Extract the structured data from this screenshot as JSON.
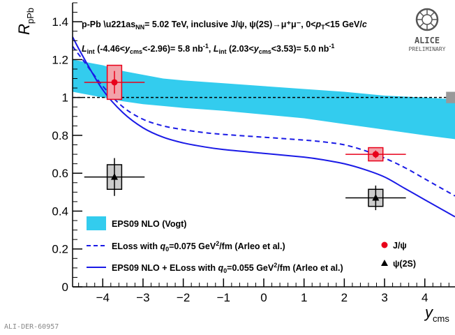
{
  "chart_data": {
    "type": "scatter",
    "title": "",
    "header": {
      "line1_prefix": "p-Pb",
      "sqrt_s_label": "s",
      "sqrt_s_sub": "NN",
      "line1_rest": "= 5.02 TeV, inclusive J/ψ, ψ(2S)→μ⁺μ⁻, 0<",
      "pt_label": "p",
      "pt_sub": "T",
      "line1_end": "<15 GeV/",
      "c_label": "c",
      "lumi_backward_prefix": "L",
      "lumi_backward_sub": "int",
      "lumi_backward_range_a": " (-4.46<",
      "lumi_y": "y",
      "lumi_y_sub": "cms",
      "lumi_backward_range_b": "<-2.96)= 5.8 nb",
      "lumi_backward_exp": "-1",
      "lumi_sep": ", ",
      "lumi_forward_prefix": "L",
      "lumi_forward_sub": "int",
      "lumi_forward_range_a": " (2.03<",
      "lumi_forward_range_b": "<3.53)= 5.0 nb",
      "lumi_forward_exp": "-1"
    },
    "xlabel": "y",
    "xlabel_sub": "cms",
    "ylabel": "R",
    "ylabel_sub": "pPb",
    "xlim": [
      -4.75,
      4.75
    ],
    "ylim": [
      0,
      1.5
    ],
    "x_ticks": [
      -4,
      -3,
      -2,
      -1,
      0,
      1,
      2,
      3,
      4
    ],
    "x_tick_labels": [
      "−4",
      "−3",
      "−2",
      "−1",
      "0",
      "1",
      "2",
      "3",
      "4"
    ],
    "y_ticks": [
      0,
      0.2,
      0.4,
      0.6,
      0.8,
      1.0,
      1.2,
      1.4
    ],
    "y_tick_labels": [
      "0",
      "0.2",
      "0.4",
      "0.6",
      "0.8",
      "1",
      "1.2",
      "1.4"
    ],
    "reference_line": 1.0,
    "global_uncertainty": {
      "x": 4.65,
      "low": 0.97,
      "high": 1.03,
      "color": "#999999"
    },
    "band": {
      "name": "EPS09 NLO (Vogt)",
      "color": "#33ccee",
      "x": [
        -4.75,
        -4.5,
        -4.0,
        -3.5,
        -3.0,
        -2.5,
        -2.0,
        -1.0,
        0.0,
        1.0,
        2.0,
        3.0,
        4.0,
        4.75
      ],
      "low": [
        1.03,
        1.02,
        1.0,
        0.98,
        0.965,
        0.955,
        0.945,
        0.93,
        0.91,
        0.89,
        0.86,
        0.83,
        0.8,
        0.78
      ],
      "high": [
        1.2,
        1.19,
        1.17,
        1.14,
        1.12,
        1.1,
        1.09,
        1.075,
        1.06,
        1.045,
        1.03,
        1.01,
        1.0,
        0.99
      ]
    },
    "curves": [
      {
        "name": "ELoss with q0=0.075 GeV²/fm (Arleo et al.)",
        "color": "#1a1ae6",
        "style": "dashed",
        "x": [
          -4.75,
          -4.5,
          -4.0,
          -3.5,
          -3.0,
          -2.5,
          -2.0,
          -1.5,
          -1.0,
          0.0,
          1.0,
          1.5,
          2.0,
          2.5,
          3.0,
          3.5,
          4.0,
          4.5,
          4.75
        ],
        "y": [
          1.27,
          1.2,
          1.06,
          0.95,
          0.885,
          0.85,
          0.83,
          0.815,
          0.805,
          0.79,
          0.775,
          0.765,
          0.75,
          0.72,
          0.68,
          0.63,
          0.57,
          0.51,
          0.48
        ]
      },
      {
        "name": "EPS09 NLO + ELoss with q0=0.055 GeV²/fm (Arleo et al.)",
        "color": "#1a1ae6",
        "style": "solid",
        "x": [
          -4.75,
          -4.5,
          -4.0,
          -3.5,
          -3.0,
          -2.5,
          -2.0,
          -1.5,
          -1.0,
          0.0,
          1.0,
          1.5,
          2.0,
          2.5,
          3.0,
          3.5,
          4.0,
          4.5,
          4.75
        ],
        "y": [
          1.32,
          1.22,
          1.04,
          0.92,
          0.84,
          0.79,
          0.76,
          0.74,
          0.725,
          0.705,
          0.685,
          0.67,
          0.65,
          0.62,
          0.58,
          0.52,
          0.46,
          0.4,
          0.37
        ]
      }
    ],
    "series": [
      {
        "name": "J/ψ",
        "marker": "circle",
        "color": "#e8001a",
        "points": [
          {
            "x": -3.71,
            "y": 1.08,
            "xerr": 0.75,
            "yerr_stat": 0.06,
            "syst": 0.09,
            "box_half_w": 0.18,
            "box_fill": "#f2a3aa"
          },
          {
            "x": 2.78,
            "y": 0.7,
            "xerr": 0.75,
            "yerr_stat": 0.02,
            "syst": 0.035,
            "box_half_w": 0.18,
            "box_fill": "#f2a3aa"
          }
        ]
      },
      {
        "name": "ψ(2S)",
        "marker": "triangle",
        "color": "#000000",
        "points": [
          {
            "x": -3.71,
            "y": 0.58,
            "xerr": 0.75,
            "yerr_stat": 0.1,
            "syst": 0.065,
            "box_half_w": 0.18,
            "box_fill": "#cccccc"
          },
          {
            "x": 2.78,
            "y": 0.47,
            "xerr": 0.75,
            "yerr_stat": 0.065,
            "syst": 0.045,
            "box_half_w": 0.18,
            "box_fill": "#cccccc"
          }
        ]
      }
    ],
    "legend": {
      "band_label": "EPS09 NLO (Vogt)",
      "dashed_prefix": "ELoss with ",
      "dashed_q": "q",
      "dashed_q_sub": "0",
      "dashed_value": "=0.075 GeV",
      "dashed_exp": "2",
      "dashed_suffix": "/fm (Arleo et al.)",
      "solid_prefix": "EPS09 NLO + ELoss with ",
      "solid_q": "q",
      "solid_q_sub": "0",
      "solid_value": "=0.055 GeV",
      "solid_exp": "2",
      "solid_suffix": "/fm (Arleo et al.)",
      "jpsi_label": "J/ψ",
      "psi2s_label": "ψ(2S)",
      "placement": "bottom"
    },
    "logo": {
      "text": "ALICE",
      "subtext": "PRELIMINARY"
    },
    "footer_id": "ALI-DER-60957",
    "grid": false
  }
}
